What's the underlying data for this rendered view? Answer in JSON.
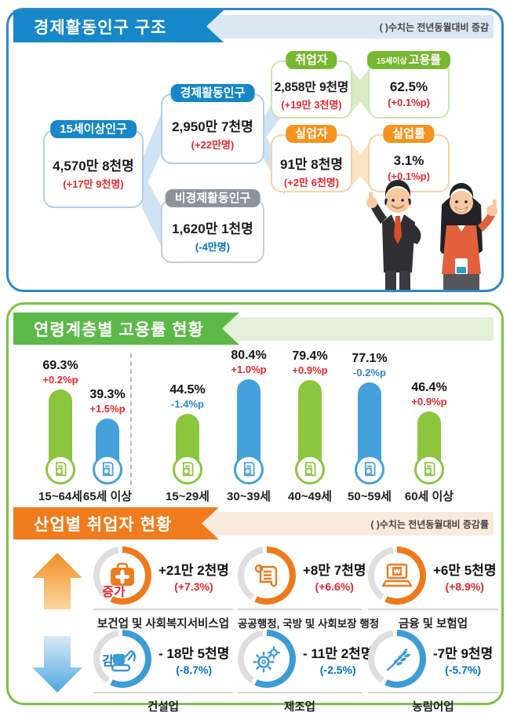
{
  "section1": {
    "title": "경제활동인구 구조",
    "note": "( )수치는 전년동월대비 증감",
    "boxes": {
      "pop15": {
        "label": "15세이상인구",
        "value": "4,570만 8천명",
        "change": "(+17만 9천명)"
      },
      "econ_active": {
        "label": "경제활동인구",
        "value": "2,950만 7천명",
        "change": "(+22만명)"
      },
      "non_econ": {
        "label": "비경제활동인구",
        "value": "1,620만 1천명",
        "change": "(-4만명)"
      },
      "employed": {
        "label": "취업자",
        "value": "2,858만 9천명",
        "change": "(+19만 3천명)"
      },
      "emp_rate": {
        "label_small": "15세이상",
        "label": "고용률",
        "value": "62.5%",
        "change": "(+0.1%p)"
      },
      "unemployed": {
        "label": "실업자",
        "value": "91만 8천명",
        "change": "(+2만 6천명)"
      },
      "unemp_rate": {
        "label": "실업률",
        "value": "3.1%",
        "change": "(+0.1%p)"
      }
    }
  },
  "section2": {
    "title": "연령계층별 고용률 현황"
  },
  "chart_data": {
    "type": "bar",
    "title": "연령계층별 고용률 현황",
    "categories": [
      "15~64세",
      "65세 이상",
      "15~29세",
      "30~39세",
      "40~49세",
      "50~59세",
      "60세 이상"
    ],
    "values": [
      69.3,
      39.3,
      44.5,
      80.4,
      79.4,
      77.1,
      46.4
    ],
    "value_labels": [
      "69.3%",
      "39.3%",
      "44.5%",
      "80.4%",
      "79.4%",
      "77.1%",
      "46.4%"
    ],
    "changes": [
      "+0.2%p",
      "+1.5%p",
      "-1.4%p",
      "+1.0%p",
      "+0.9%p",
      "-0.2%p",
      "+0.9%p"
    ],
    "unit": "%",
    "bar_colors": [
      "#8cc63e",
      "#45a1db",
      "#8cc63e",
      "#45a1db",
      "#8cc63e",
      "#45a1db",
      "#8cc63e"
    ],
    "group_separator_after": 2,
    "accent_positive": "#e8262d",
    "accent_negative": "#2e86c8"
  },
  "section3": {
    "title": "산업별 취업자 현황",
    "note": "( )수치는 전년동월대비 증감률",
    "increase_label": "증가",
    "decrease_label": "감소",
    "increase": [
      {
        "industry": "보건업 및 사회복지서비스업",
        "value": "+21만 2천명",
        "pct": "(+7.3%)",
        "icon": "medical-bag-icon"
      },
      {
        "industry": "공공행정, 국방 및 사회보장 행정",
        "value": "+8만 7천명",
        "pct": "(+6.6%)",
        "icon": "scroll-icon"
      },
      {
        "industry": "금융 및 보험업",
        "value": "+6만 5천명",
        "pct": "(+8.9%)",
        "icon": "laptop-won-icon"
      }
    ],
    "decrease": [
      {
        "industry": "건설업",
        "value": "- 18만 5천명",
        "pct": "(-8.7%)",
        "icon": "excavator-icon"
      },
      {
        "industry": "제조업",
        "value": "- 11만 2천명",
        "pct": "(-2.5%)",
        "icon": "gear-icon"
      },
      {
        "industry": "농림어업",
        "value": "-7만 9천명",
        "pct": "(-5.7%)",
        "icon": "wheat-icon"
      }
    ],
    "colors": {
      "increase": "#ee7a1c",
      "decrease": "#3d9bd5"
    }
  }
}
